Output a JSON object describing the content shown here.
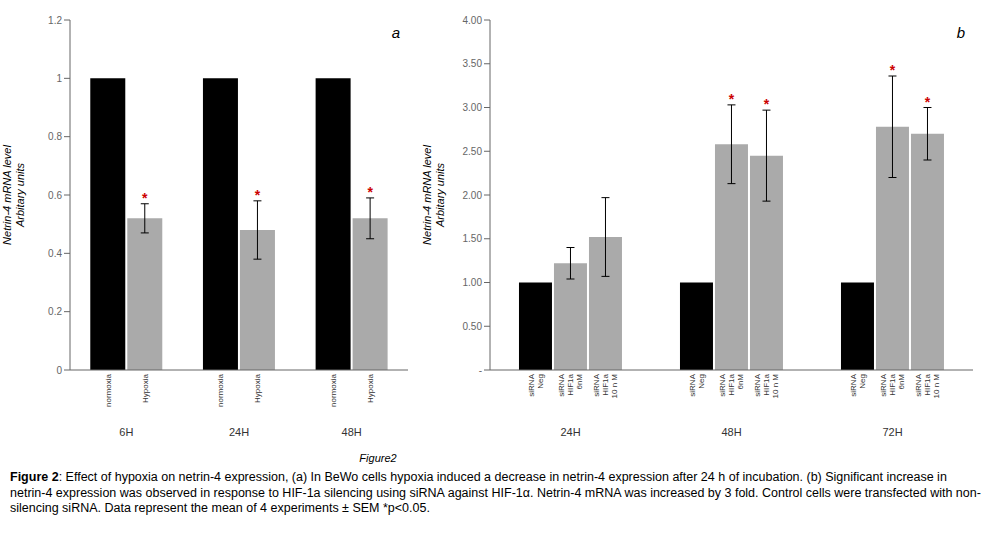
{
  "chart_data": [
    {
      "type": "bar",
      "title": "a",
      "ylabel": "Netrin-4 mRNA level\nArbitary units",
      "categories": [
        "6H",
        "24H",
        "48H"
      ],
      "series": [
        {
          "name": "normoxia",
          "color": "#000000",
          "values": [
            1.0,
            1.0,
            1.0
          ],
          "errors": [
            0.0,
            0.0,
            0.0
          ],
          "significant": [
            false,
            false,
            false
          ]
        },
        {
          "name": "Hypoxia",
          "color": "#aaaaaa",
          "values": [
            0.52,
            0.48,
            0.52
          ],
          "errors": [
            0.05,
            0.1,
            0.07
          ],
          "significant": [
            true,
            true,
            true
          ]
        }
      ],
      "ylim": [
        0,
        1.2
      ],
      "yticks": [
        0,
        0.2,
        0.4,
        0.6,
        0.8,
        1,
        1.2
      ],
      "significance_label": "*",
      "significance_color": "#cc0000"
    },
    {
      "type": "bar",
      "title": "b",
      "ylabel": "Netrin-4 mRNA level\nArbitary units",
      "categories": [
        "24H",
        "48H",
        "72H"
      ],
      "series": [
        {
          "name": "siRNA\nNeg",
          "color": "#000000",
          "values": [
            1.0,
            1.0,
            1.0
          ],
          "errors": [
            0.0,
            0.0,
            0.0
          ],
          "significant": [
            false,
            false,
            false
          ]
        },
        {
          "name": "siRNA\nHIF1a\n6nM",
          "color": "#aaaaaa",
          "values": [
            1.22,
            2.58,
            2.78
          ],
          "errors": [
            0.18,
            0.45,
            0.58
          ],
          "significant": [
            false,
            true,
            true
          ]
        },
        {
          "name": "siRNA\nHIF1a\n10 n M",
          "color": "#aaaaaa",
          "values": [
            1.52,
            2.45,
            2.7
          ],
          "errors": [
            0.45,
            0.52,
            0.3
          ],
          "significant": [
            false,
            true,
            true
          ]
        }
      ],
      "ylim": [
        0.0,
        4.0
      ],
      "yticks": [
        {
          "value": 0,
          "label": "-"
        },
        {
          "value": 0.5,
          "label": "0.50"
        },
        {
          "value": 1.0,
          "label": "1.00"
        },
        {
          "value": 1.5,
          "label": "1.50"
        },
        {
          "value": 2.0,
          "label": "2.00"
        },
        {
          "value": 2.5,
          "label": "2.50"
        },
        {
          "value": 3.0,
          "label": "3.00"
        },
        {
          "value": 3.5,
          "label": "3.50"
        },
        {
          "value": 4.0,
          "label": "4.00"
        }
      ],
      "significance_label": "*",
      "significance_color": "#cc0000"
    }
  ],
  "figure_label": "Figure2",
  "caption_bold": "Figure 2",
  "caption_text": ": Effect of hypoxia on netrin-4 expression, (a) In BeWo cells hypoxia induced a decrease in netrin-4 expression after 24 h of incubation. (b) Significant increase in netrin-4 expression was observed in response to HIF-1a silencing using siRNA against HIF-1α. Netrin-4 mRNA was increased by 3 fold. Control cells were transfected with non-silencing siRNA. Data represent the mean of 4 experiments ± SEM *p<0.05.",
  "background_color": "#ffffff"
}
